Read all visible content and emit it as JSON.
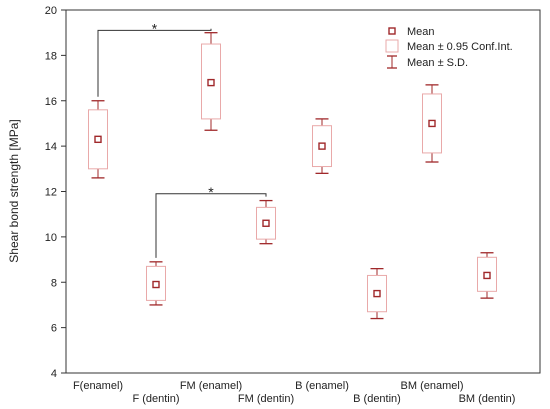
{
  "chart_data": {
    "type": "box",
    "ylabel": "Shear bond strength [MPa]",
    "xlabel": "",
    "ylim": [
      4,
      20
    ],
    "yticks": [
      4,
      6,
      8,
      10,
      12,
      14,
      16,
      18,
      20
    ],
    "grid": false,
    "legend_position": "top-right",
    "categories": [
      "F(enamel)",
      "F (dentin)",
      "FM (enamel)",
      "FM (dentin)",
      "B (enamel)",
      "B (dentin)",
      "BM (enamel)",
      "BM (dentin)"
    ],
    "groups": [
      {
        "label": "F(enamel)",
        "mean": 14.3,
        "ci_low": 13.0,
        "ci_high": 15.6,
        "sd_low": 12.6,
        "sd_high": 16.0
      },
      {
        "label": "F (dentin)",
        "mean": 7.9,
        "ci_low": 7.2,
        "ci_high": 8.7,
        "sd_low": 7.0,
        "sd_high": 8.9
      },
      {
        "label": "FM (enamel)",
        "mean": 16.8,
        "ci_low": 15.2,
        "ci_high": 18.5,
        "sd_low": 14.7,
        "sd_high": 19.0
      },
      {
        "label": "FM (dentin)",
        "mean": 10.6,
        "ci_low": 9.9,
        "ci_high": 11.3,
        "sd_low": 9.7,
        "sd_high": 11.6
      },
      {
        "label": "B (enamel)",
        "mean": 14.0,
        "ci_low": 13.1,
        "ci_high": 14.9,
        "sd_low": 12.8,
        "sd_high": 15.2
      },
      {
        "label": "B (dentin)",
        "mean": 7.5,
        "ci_low": 6.7,
        "ci_high": 8.3,
        "sd_low": 6.4,
        "sd_high": 8.6
      },
      {
        "label": "BM (enamel)",
        "mean": 15.0,
        "ci_low": 13.7,
        "ci_high": 16.3,
        "sd_low": 13.3,
        "sd_high": 16.7
      },
      {
        "label": "BM (dentin)",
        "mean": 8.3,
        "ci_low": 7.6,
        "ci_high": 9.1,
        "sd_low": 7.3,
        "sd_high": 9.3
      }
    ],
    "significance": [
      {
        "from": 0,
        "to": 2,
        "level": 19.1,
        "label": "*"
      },
      {
        "from": 1,
        "to": 3,
        "level": 11.9,
        "label": "*"
      }
    ],
    "legend": [
      {
        "key": "mean",
        "label": "Mean"
      },
      {
        "key": "ci",
        "label": "Mean ± 0.95 Conf.Int."
      },
      {
        "key": "sd",
        "label": "Mean ± S.D."
      }
    ],
    "colors": {
      "mean": "#a0282a",
      "ci_box": "#e9a9a9",
      "sd_whisker": "#a0282a",
      "axis": "#333333",
      "bracket": "#333333"
    }
  }
}
